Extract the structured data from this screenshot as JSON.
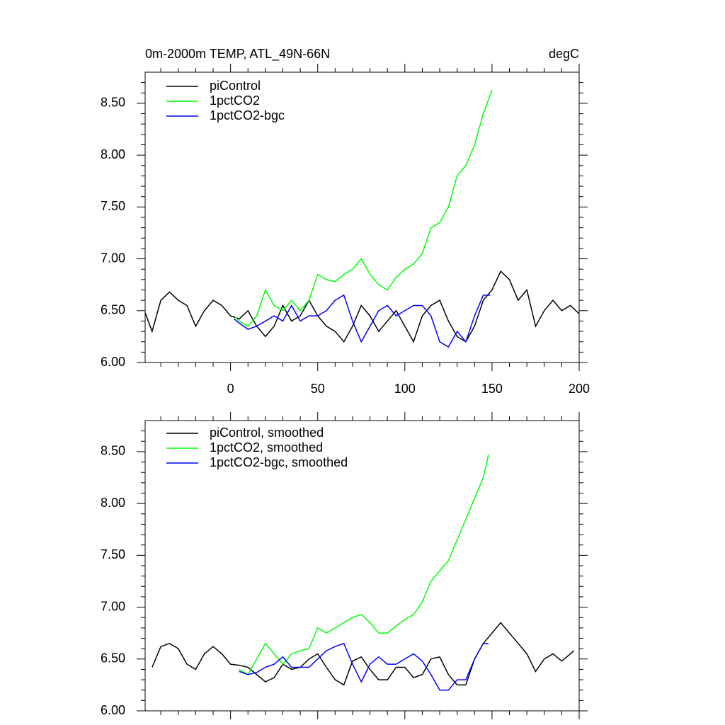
{
  "chart_data": [
    {
      "type": "line",
      "title": "0m-2000m TEMP, ATL_49N-66N",
      "units": "degC",
      "xlim": [
        -49,
        200
      ],
      "xticks": [
        0,
        50,
        100,
        150,
        200
      ],
      "show_xtick_labels": true,
      "ylim": [
        6.0,
        8.8
      ],
      "yticks": [
        {
          "value": 6.0,
          "label": "6.00"
        },
        {
          "value": 6.5,
          "label": "6.50"
        },
        {
          "value": 7.0,
          "label": "7.00"
        },
        {
          "value": 7.5,
          "label": "7.50"
        },
        {
          "value": 8.0,
          "label": "8.00"
        },
        {
          "value": 8.5,
          "label": "8.50"
        }
      ],
      "series": [
        {
          "name": "piControl",
          "color": "#000000",
          "x": [
            -49,
            -45,
            -40,
            -35,
            -30,
            -25,
            -20,
            -15,
            -10,
            -5,
            0,
            5,
            10,
            15,
            20,
            25,
            30,
            35,
            40,
            45,
            50,
            55,
            60,
            65,
            70,
            75,
            80,
            85,
            90,
            95,
            100,
            105,
            110,
            115,
            120,
            125,
            130,
            135,
            140,
            145,
            150,
            155,
            160,
            165,
            170,
            175,
            180,
            185,
            190,
            195,
            200
          ],
          "values": [
            6.48,
            6.3,
            6.6,
            6.68,
            6.6,
            6.55,
            6.35,
            6.5,
            6.6,
            6.55,
            6.45,
            6.42,
            6.5,
            6.35,
            6.25,
            6.35,
            6.55,
            6.4,
            6.45,
            6.6,
            6.45,
            6.35,
            6.3,
            6.2,
            6.35,
            6.55,
            6.45,
            6.3,
            6.4,
            6.5,
            6.35,
            6.2,
            6.45,
            6.55,
            6.6,
            6.4,
            6.25,
            6.2,
            6.35,
            6.6,
            6.7,
            6.88,
            6.8,
            6.6,
            6.7,
            6.35,
            6.5,
            6.6,
            6.5,
            6.55,
            6.47
          ]
        },
        {
          "name": "1pctCO2",
          "color": "#00ff00",
          "x": [
            2,
            5,
            10,
            15,
            20,
            25,
            30,
            35,
            40,
            45,
            50,
            55,
            60,
            65,
            70,
            75,
            80,
            85,
            90,
            95,
            100,
            105,
            110,
            115,
            120,
            125,
            130,
            135,
            140,
            145,
            150
          ],
          "values": [
            6.45,
            6.4,
            6.35,
            6.45,
            6.7,
            6.55,
            6.5,
            6.6,
            6.5,
            6.6,
            6.85,
            6.8,
            6.78,
            6.85,
            6.9,
            7.0,
            6.85,
            6.75,
            6.7,
            6.82,
            6.9,
            6.95,
            7.05,
            7.3,
            7.35,
            7.5,
            7.8,
            7.9,
            8.1,
            8.4,
            8.63
          ]
        },
        {
          "name": "1pctCO2-bgc",
          "color": "#0000ff",
          "x": [
            2,
            5,
            10,
            15,
            20,
            25,
            30,
            35,
            40,
            45,
            50,
            55,
            60,
            65,
            70,
            75,
            80,
            85,
            90,
            95,
            100,
            105,
            110,
            115,
            120,
            125,
            130,
            135,
            140,
            145,
            149
          ],
          "values": [
            6.42,
            6.38,
            6.32,
            6.35,
            6.4,
            6.45,
            6.4,
            6.55,
            6.4,
            6.45,
            6.45,
            6.5,
            6.6,
            6.65,
            6.4,
            6.2,
            6.35,
            6.5,
            6.55,
            6.45,
            6.5,
            6.55,
            6.55,
            6.45,
            6.2,
            6.15,
            6.3,
            6.2,
            6.45,
            6.65,
            6.65
          ]
        }
      ]
    },
    {
      "type": "line",
      "xlim": [
        -49,
        200
      ],
      "xticks": [
        0,
        50,
        100,
        150,
        200
      ],
      "show_xtick_labels": false,
      "ylim": [
        6.0,
        8.8
      ],
      "yticks": [
        {
          "value": 6.0,
          "label": "6.00"
        },
        {
          "value": 6.5,
          "label": "6.50"
        },
        {
          "value": 7.0,
          "label": "7.00"
        },
        {
          "value": 7.5,
          "label": "7.50"
        },
        {
          "value": 8.0,
          "label": "8.00"
        },
        {
          "value": 8.5,
          "label": "8.50"
        }
      ],
      "series": [
        {
          "name": "piControl, smoothed",
          "color": "#000000",
          "x": [
            -45,
            -40,
            -35,
            -30,
            -25,
            -20,
            -15,
            -10,
            -5,
            0,
            5,
            10,
            15,
            20,
            25,
            30,
            35,
            40,
            45,
            50,
            55,
            60,
            65,
            70,
            75,
            80,
            85,
            90,
            95,
            100,
            105,
            110,
            115,
            120,
            125,
            130,
            135,
            140,
            145,
            150,
            155,
            160,
            165,
            170,
            175,
            180,
            185,
            190,
            195,
            197
          ],
          "values": [
            6.42,
            6.62,
            6.65,
            6.6,
            6.45,
            6.4,
            6.55,
            6.62,
            6.55,
            6.45,
            6.44,
            6.42,
            6.35,
            6.28,
            6.32,
            6.45,
            6.4,
            6.42,
            6.5,
            6.55,
            6.42,
            6.3,
            6.25,
            6.48,
            6.52,
            6.4,
            6.3,
            6.3,
            6.42,
            6.42,
            6.32,
            6.35,
            6.5,
            6.52,
            6.35,
            6.25,
            6.25,
            6.5,
            6.65,
            6.75,
            6.85,
            6.75,
            6.65,
            6.55,
            6.38,
            6.5,
            6.55,
            6.48,
            6.55,
            6.58
          ]
        },
        {
          "name": "1pctCO2, smoothed",
          "color": "#00ff00",
          "x": [
            5,
            10,
            15,
            20,
            25,
            30,
            35,
            40,
            45,
            50,
            55,
            60,
            65,
            70,
            75,
            80,
            85,
            90,
            95,
            100,
            105,
            110,
            115,
            120,
            125,
            130,
            135,
            140,
            145,
            148
          ],
          "values": [
            6.4,
            6.35,
            6.5,
            6.65,
            6.55,
            6.45,
            6.55,
            6.58,
            6.6,
            6.8,
            6.75,
            6.8,
            6.85,
            6.9,
            6.93,
            6.85,
            6.75,
            6.75,
            6.82,
            6.88,
            6.93,
            7.05,
            7.25,
            7.35,
            7.45,
            7.65,
            7.85,
            8.05,
            8.25,
            8.47
          ]
        },
        {
          "name": "1pctCO2-bgc, smoothed",
          "color": "#0000ff",
          "x": [
            5,
            10,
            15,
            20,
            25,
            30,
            35,
            40,
            45,
            50,
            55,
            60,
            65,
            70,
            75,
            80,
            85,
            90,
            95,
            100,
            105,
            110,
            115,
            120,
            125,
            130,
            135,
            140,
            145,
            148
          ],
          "values": [
            6.38,
            6.35,
            6.37,
            6.42,
            6.45,
            6.52,
            6.42,
            6.42,
            6.42,
            6.5,
            6.58,
            6.62,
            6.65,
            6.45,
            6.28,
            6.45,
            6.52,
            6.45,
            6.45,
            6.5,
            6.55,
            6.48,
            6.35,
            6.2,
            6.2,
            6.3,
            6.3,
            6.5,
            6.65,
            6.65
          ]
        }
      ]
    }
  ]
}
